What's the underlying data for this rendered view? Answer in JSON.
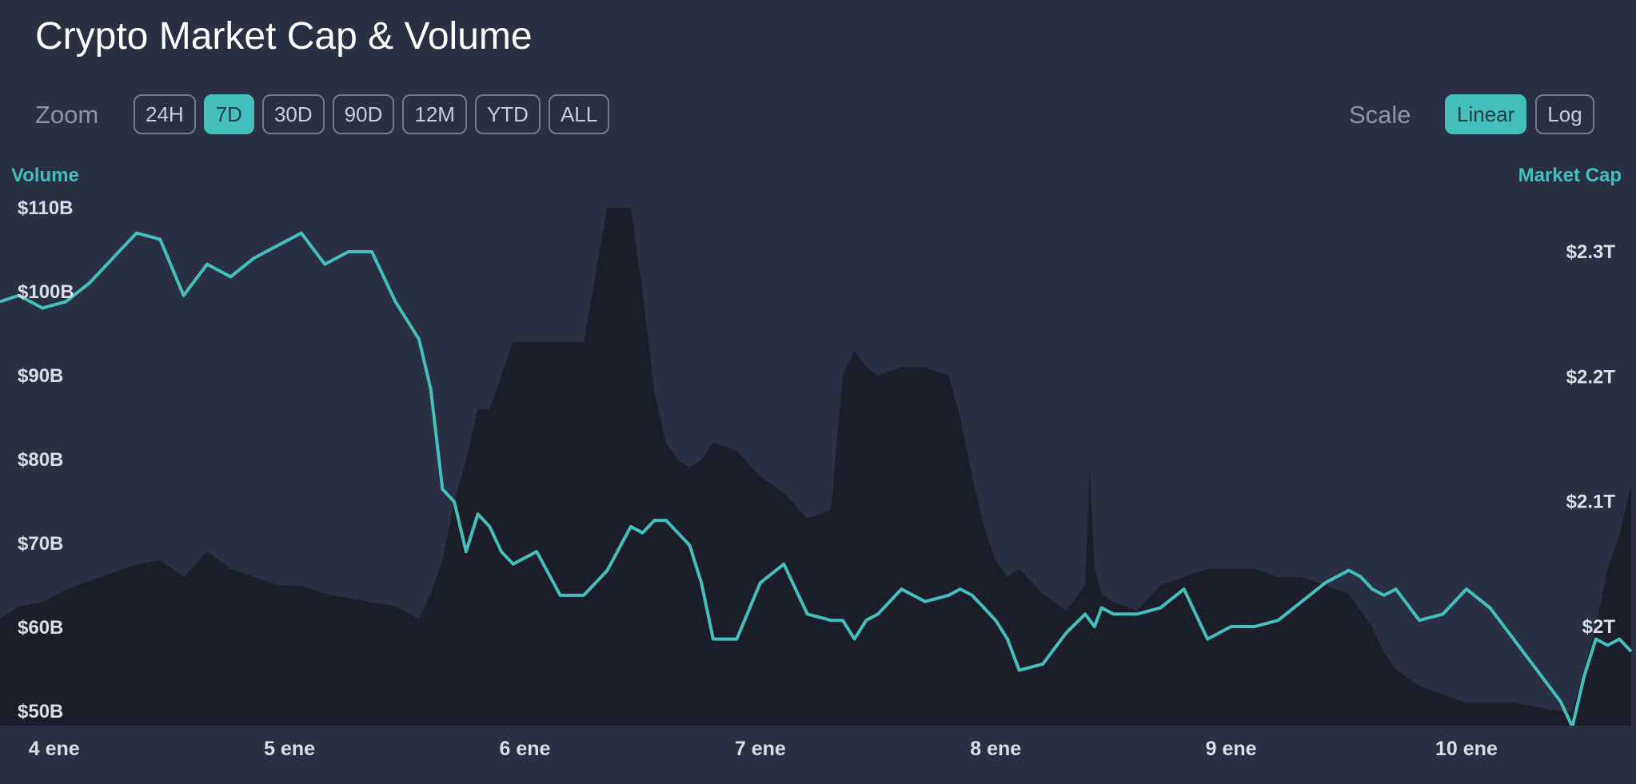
{
  "header": {
    "title": "Crypto Market Cap & Volume"
  },
  "zoom": {
    "label": "Zoom",
    "options": [
      "24H",
      "7D",
      "30D",
      "90D",
      "12M",
      "YTD",
      "ALL"
    ],
    "selected": "7D"
  },
  "scale": {
    "label": "Scale",
    "options": [
      "Linear",
      "Log"
    ],
    "selected": "Linear"
  },
  "colors": {
    "accent": "#45bfbb",
    "volume_fill": "#1b1e29",
    "background": "#283041"
  },
  "chart_data": {
    "type": "area",
    "x_type": "date",
    "x_ticks": [
      "4 ene",
      "5 ene",
      "6 ene",
      "7 ene",
      "8 ene",
      "9 ene",
      "10 ene"
    ],
    "x": [
      3.77,
      3.85,
      3.95,
      4.05,
      4.15,
      4.25,
      4.35,
      4.45,
      4.55,
      4.65,
      4.75,
      4.85,
      4.95,
      5.05,
      5.15,
      5.25,
      5.35,
      5.45,
      5.55,
      5.6,
      5.65,
      5.7,
      5.75,
      5.8,
      5.85,
      5.9,
      5.95,
      6.05,
      6.15,
      6.25,
      6.35,
      6.45,
      6.5,
      6.55,
      6.6,
      6.65,
      6.7,
      6.75,
      6.8,
      6.9,
      7.0,
      7.1,
      7.2,
      7.3,
      7.35,
      7.4,
      7.45,
      7.5,
      7.6,
      7.7,
      7.8,
      7.85,
      7.9,
      7.95,
      8.0,
      8.05,
      8.1,
      8.2,
      8.3,
      8.38,
      8.4,
      8.42,
      8.45,
      8.5,
      8.6,
      8.7,
      8.8,
      8.9,
      9.0,
      9.1,
      9.2,
      9.3,
      9.4,
      9.5,
      9.55,
      9.6,
      9.65,
      9.7,
      9.8,
      9.9,
      10.0,
      10.1,
      10.2,
      10.3,
      10.4,
      10.45,
      10.5,
      10.55,
      10.6,
      10.65,
      10.7
    ],
    "y_axis_left": {
      "title": "Volume",
      "range": [
        50,
        112
      ],
      "ticks": [
        "$50B",
        "$60B",
        "$70B",
        "$80B",
        "$90B",
        "$100B",
        "$110B"
      ]
    },
    "y_axis_right": {
      "title": "Market Cap",
      "range": [
        1.91,
        2.42
      ],
      "ticks": [
        "$2T",
        "$2.1T",
        "$2.2T",
        "$2.3T"
      ]
    },
    "series": [
      {
        "name": "Volume",
        "axis": "left",
        "unit": "B",
        "values": [
          61,
          62.5,
          63,
          64.5,
          65.5,
          66.5,
          67.5,
          68,
          66,
          69,
          67,
          66,
          65,
          65,
          64,
          63.5,
          63,
          62.5,
          61,
          64,
          68,
          75,
          80,
          86,
          86,
          90,
          94,
          94,
          94,
          94,
          110,
          110,
          100,
          88,
          82,
          80,
          79,
          80,
          82,
          81,
          78,
          76,
          73,
          74,
          90,
          93,
          91,
          90,
          91,
          91,
          90,
          85,
          78,
          72,
          68,
          66,
          67,
          64,
          62,
          65,
          79,
          67,
          64,
          63,
          62,
          65,
          66,
          67,
          67,
          67,
          66,
          66,
          65,
          64,
          62,
          60,
          57,
          55,
          53,
          52,
          51,
          51,
          51,
          50.5,
          50,
          50,
          55,
          60,
          67,
          71,
          77
        ]
      },
      {
        "name": "Market Cap",
        "axis": "right",
        "unit": "T",
        "values": [
          2.26,
          2.265,
          2.255,
          2.26,
          2.275,
          2.295,
          2.315,
          2.31,
          2.265,
          2.29,
          2.28,
          2.295,
          2.305,
          2.315,
          2.29,
          2.3,
          2.3,
          2.26,
          2.23,
          2.19,
          2.11,
          2.1,
          2.06,
          2.09,
          2.08,
          2.06,
          2.05,
          2.06,
          2.025,
          2.025,
          2.045,
          2.08,
          2.075,
          2.085,
          2.085,
          2.075,
          2.065,
          2.035,
          1.99,
          1.99,
          2.035,
          2.05,
          2.01,
          2.005,
          2.005,
          1.99,
          2.005,
          2.01,
          2.03,
          2.02,
          2.025,
          2.03,
          2.025,
          2.015,
          2.005,
          1.99,
          1.965,
          1.97,
          1.995,
          2.01,
          2.005,
          2.0,
          2.015,
          2.01,
          2.01,
          2.015,
          2.03,
          1.99,
          2.0,
          2.0,
          2.005,
          2.02,
          2.035,
          2.045,
          2.04,
          2.03,
          2.025,
          2.03,
          2.005,
          2.01,
          2.03,
          2.015,
          1.99,
          1.965,
          1.94,
          1.92,
          1.96,
          1.99,
          1.985,
          1.99,
          1.98
        ]
      }
    ],
    "grid": false
  }
}
